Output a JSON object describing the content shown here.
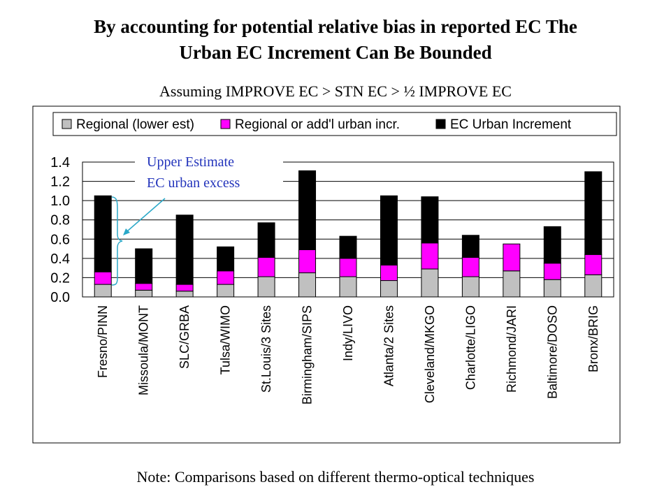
{
  "title_line1": "By accounting for potential relative bias in reported EC  The",
  "title_line2": "Urban EC Increment Can Be Bounded",
  "subtitle": "Assuming IMPROVE EC > STN EC > ½ IMPROVE EC",
  "note": "Note: Comparisons based on different thermo-optical techniques",
  "annotation": {
    "line1": "Upper Estimate",
    "line2": "EC urban excess"
  },
  "colors": {
    "regional": "#c0c0c0",
    "incr": "#ff00ff",
    "urban": "#000000",
    "annotation": "#2233bb"
  },
  "chart_data": {
    "type": "bar",
    "stacked": true,
    "categories": [
      "Fresno/PINN",
      "Missoula/MONT",
      "SLC/GRBA",
      "Tulsa/WIMO",
      "St.Louis/3 Sites",
      "Birmingham/SIPS",
      "Indy/LIVO",
      "Atlanta/2 Sites",
      "Cleveland/MKGO",
      "Charlotte/LIGO",
      "Richmond/JARI",
      "Baltimore/DOSO",
      "Bronx/BRIG"
    ],
    "series": [
      {
        "name": "Regional (lower est)",
        "color": "#c0c0c0",
        "values": [
          0.13,
          0.07,
          0.06,
          0.13,
          0.21,
          0.25,
          0.21,
          0.17,
          0.29,
          0.21,
          0.27,
          0.18,
          0.23
        ]
      },
      {
        "name": "Regional or add'l urban incr.",
        "color": "#ff00ff",
        "values": [
          0.13,
          0.07,
          0.07,
          0.14,
          0.2,
          0.24,
          0.19,
          0.16,
          0.27,
          0.2,
          0.28,
          0.17,
          0.21
        ]
      },
      {
        "name": "EC Urban Increment",
        "color": "#000000",
        "values": [
          0.79,
          0.36,
          0.72,
          0.25,
          0.36,
          0.82,
          0.23,
          0.72,
          0.48,
          0.23,
          0.0,
          0.38,
          0.86
        ]
      }
    ],
    "ylim": [
      0,
      1.4
    ],
    "yticks": [
      "0.0",
      "0.2",
      "0.4",
      "0.6",
      "0.8",
      "1.0",
      "1.2",
      "1.4"
    ],
    "grid": true,
    "legend": "top"
  }
}
